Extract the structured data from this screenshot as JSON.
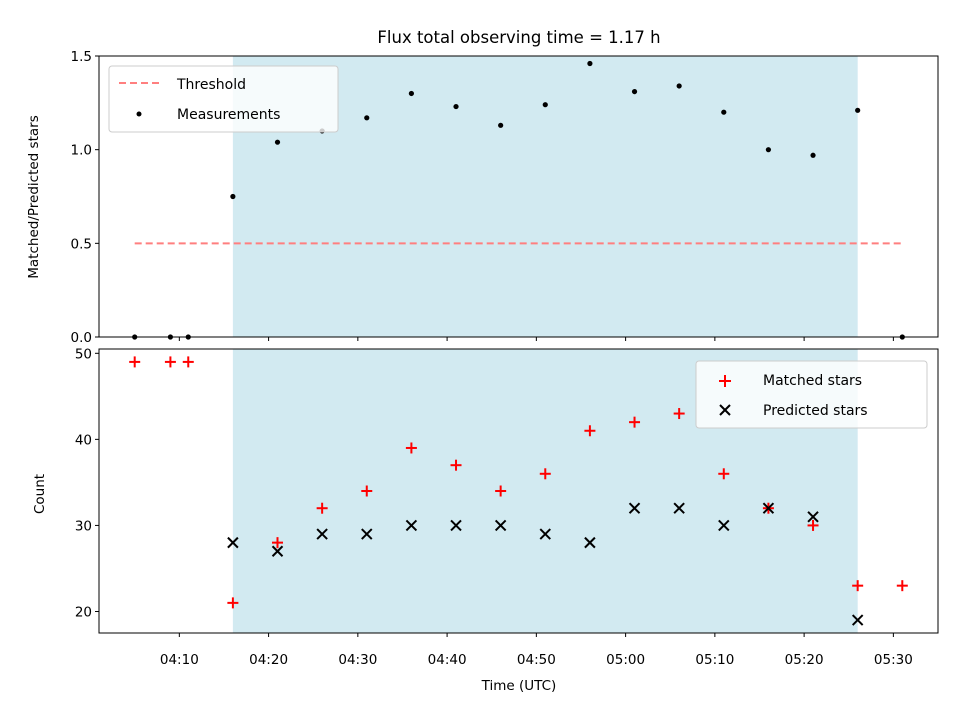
{
  "figure": {
    "title": "Flux total observing time = 1.17 h"
  },
  "colors": {
    "shade": "#add8e6",
    "threshold": "#ff7f7f",
    "measurement": "#000000",
    "matched": "#ff0000",
    "predicted": "#000000"
  },
  "chart_data": [
    {
      "type": "scatter",
      "panel": "top",
      "ylabel": "Matched/Predicted stars",
      "xlabel": "",
      "ylim": [
        0,
        1.5
      ],
      "yticks": [
        "0.0",
        "0.5",
        "1.0",
        "1.5"
      ],
      "xlim": [
        "04:01",
        "05:35"
      ],
      "shaded_span": [
        "04:16",
        "05:26"
      ],
      "legend": {
        "position": "top-left",
        "entries": [
          "Threshold",
          "Measurements"
        ]
      },
      "threshold": {
        "name": "Threshold",
        "value": 0.5,
        "x_range": [
          "04:05",
          "05:31"
        ],
        "style": "dashed"
      },
      "series": [
        {
          "name": "Measurements",
          "marker": "dot",
          "x": [
            "04:05",
            "04:09",
            "04:11",
            "04:16",
            "04:21",
            "04:26",
            "04:31",
            "04:36",
            "04:41",
            "04:46",
            "04:51",
            "04:56",
            "05:01",
            "05:06",
            "05:11",
            "05:16",
            "05:21",
            "05:26",
            "05:31"
          ],
          "y": [
            0,
            0,
            0,
            0.75,
            1.04,
            1.1,
            1.17,
            1.3,
            1.23,
            1.13,
            1.24,
            1.46,
            1.31,
            1.34,
            1.2,
            1.0,
            0.97,
            1.21,
            0
          ]
        }
      ]
    },
    {
      "type": "scatter",
      "panel": "bottom",
      "ylabel": "Count",
      "xlabel": "Time (UTC)",
      "ylim": [
        17.5,
        50.5
      ],
      "yticks": [
        "20",
        "30",
        "40",
        "50"
      ],
      "xlim": [
        "04:01",
        "05:35"
      ],
      "xticks": [
        "04:10",
        "04:20",
        "04:30",
        "04:40",
        "04:50",
        "05:00",
        "05:10",
        "05:20",
        "05:30"
      ],
      "shaded_span": [
        "04:16",
        "05:26"
      ],
      "legend": {
        "position": "top-right",
        "entries": [
          "Matched stars",
          "Predicted stars"
        ]
      },
      "series": [
        {
          "name": "Matched stars",
          "marker": "plus",
          "x": [
            "04:05",
            "04:09",
            "04:11",
            "04:16",
            "04:21",
            "04:26",
            "04:31",
            "04:36",
            "04:41",
            "04:46",
            "04:51",
            "04:56",
            "05:01",
            "05:06",
            "05:11",
            "05:16",
            "05:21",
            "05:26",
            "05:31"
          ],
          "y": [
            49,
            49,
            49,
            21,
            28,
            32,
            34,
            39,
            37,
            34,
            36,
            41,
            42,
            43,
            36,
            32,
            30,
            23,
            23
          ]
        },
        {
          "name": "Predicted stars",
          "marker": "x",
          "x": [
            "04:16",
            "04:21",
            "04:26",
            "04:31",
            "04:36",
            "04:41",
            "04:46",
            "04:51",
            "04:56",
            "05:01",
            "05:06",
            "05:11",
            "05:16",
            "05:21",
            "05:26"
          ],
          "y": [
            28,
            27,
            29,
            29,
            30,
            30,
            30,
            29,
            28,
            32,
            32,
            30,
            32,
            31,
            19
          ]
        }
      ]
    }
  ]
}
